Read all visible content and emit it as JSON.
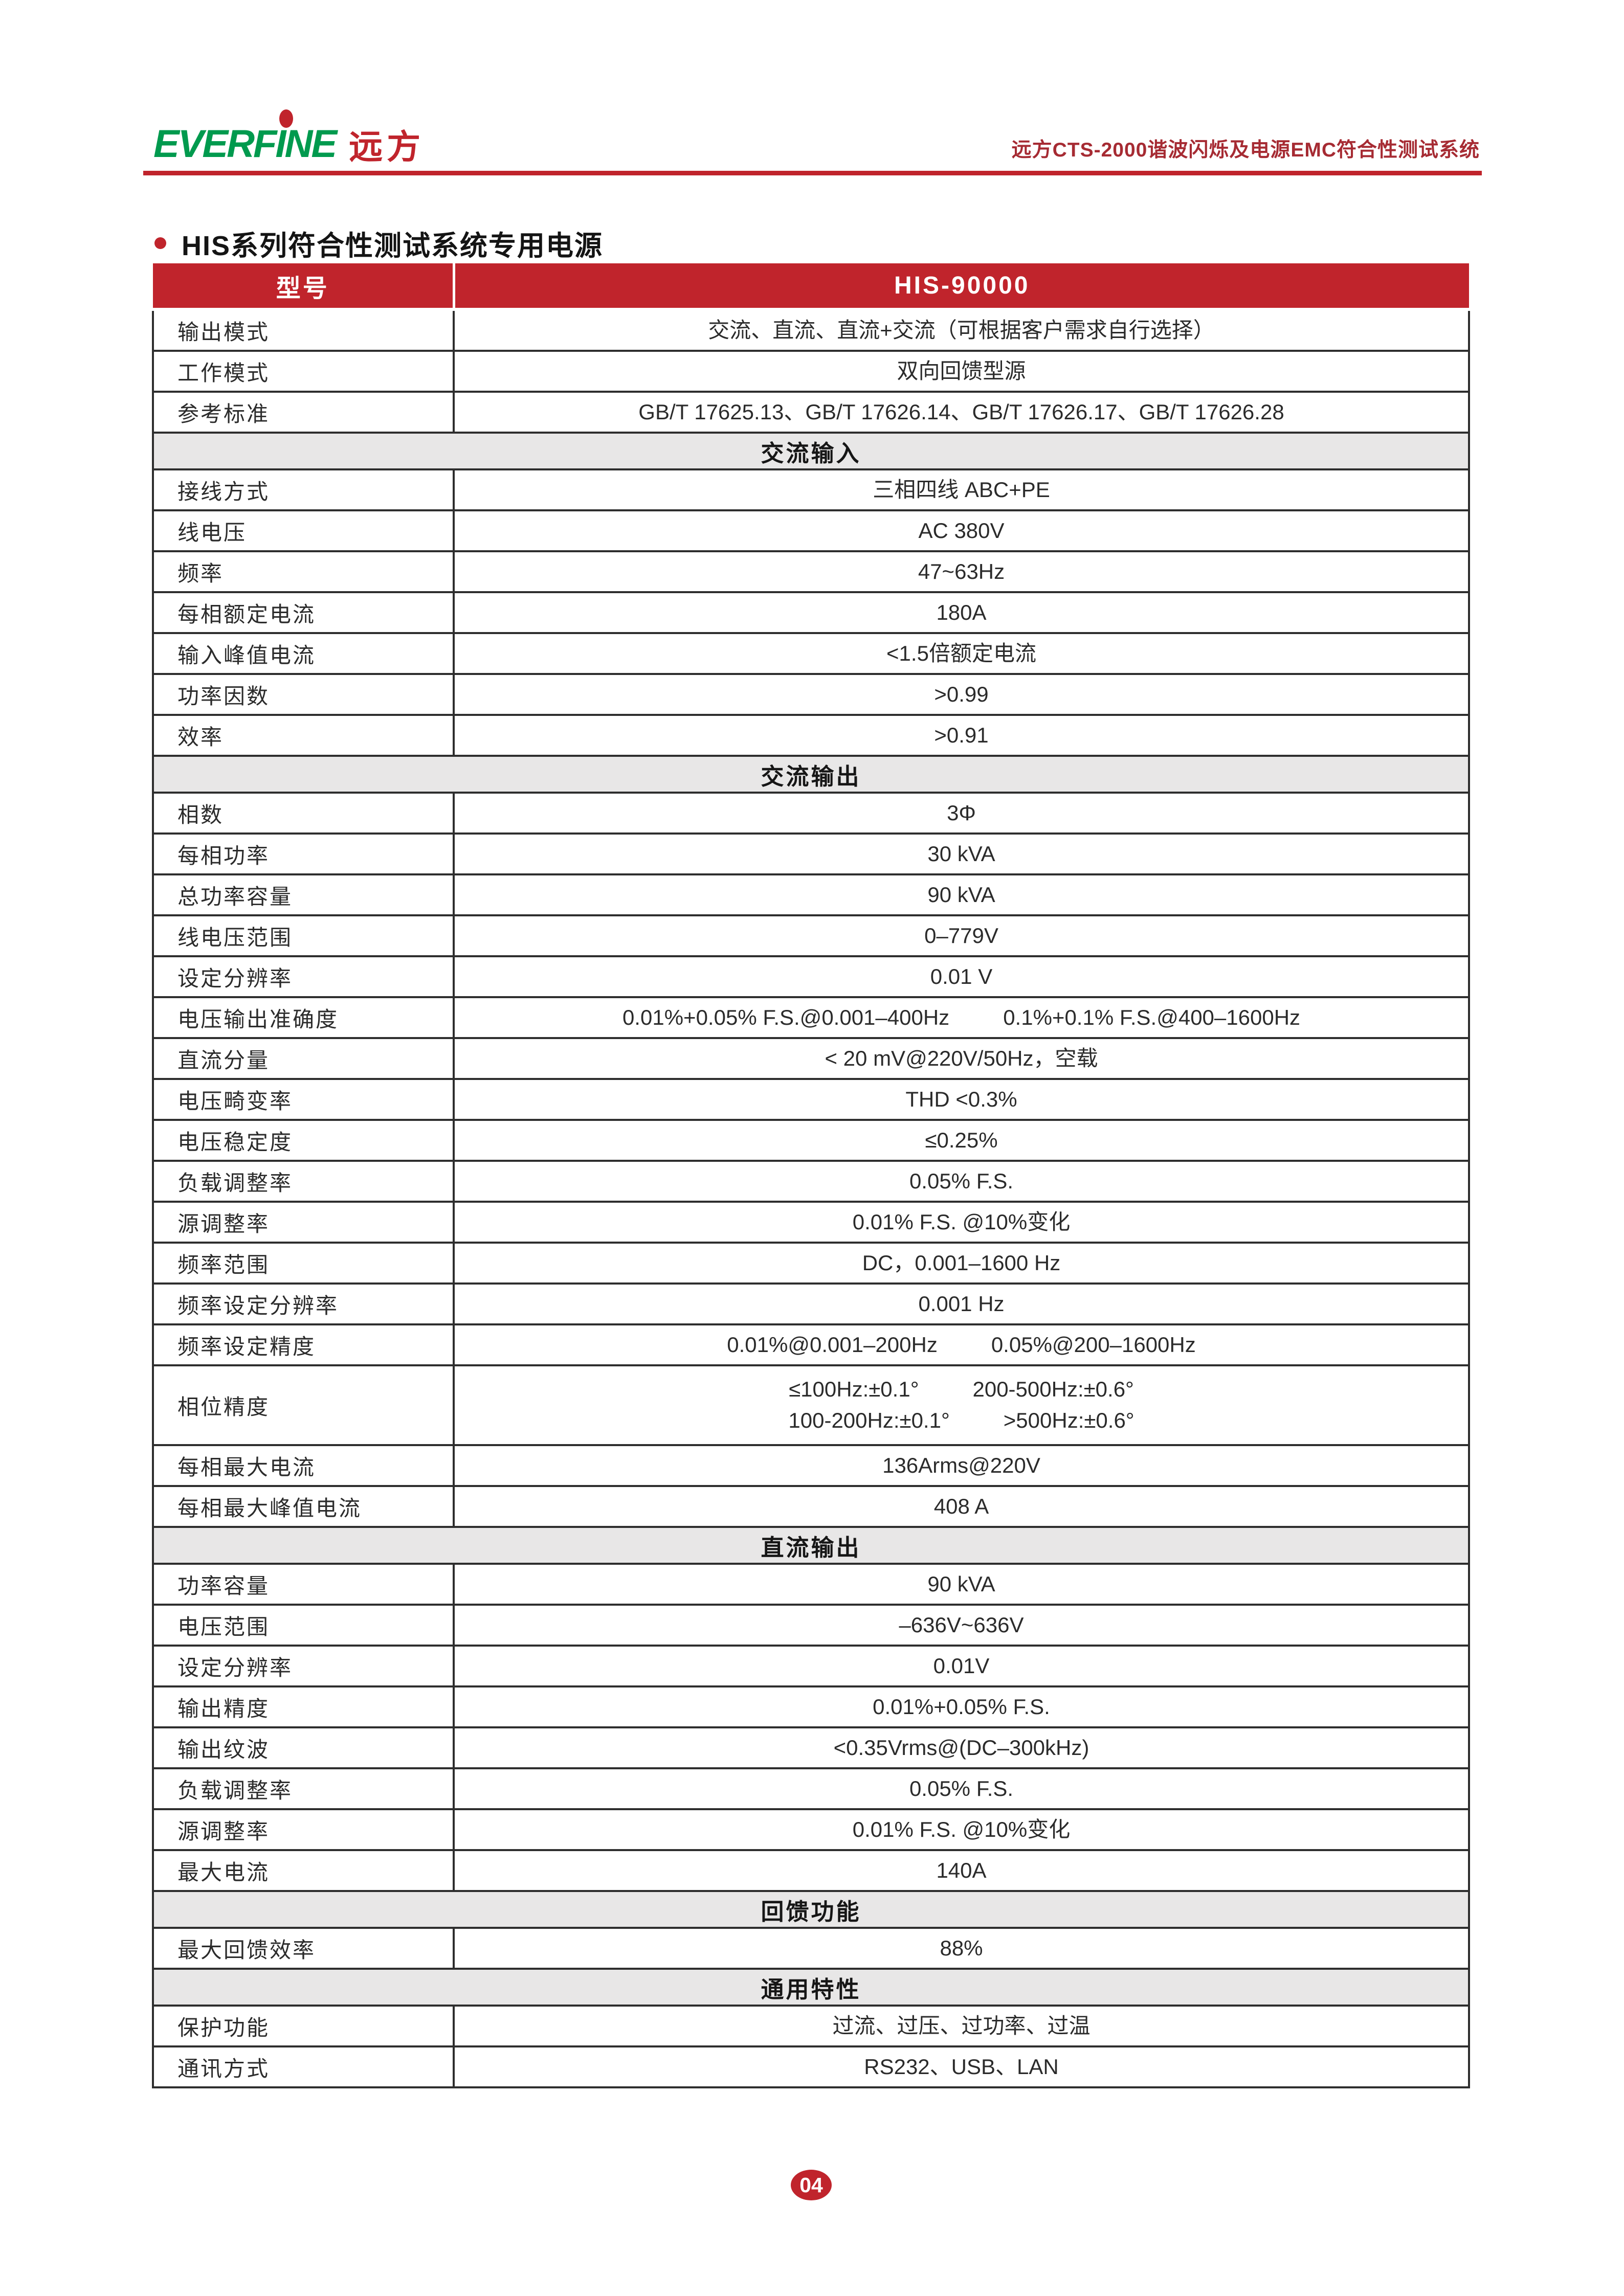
{
  "colors": {
    "accent": "#C0242C",
    "logo_green": "#009A4E",
    "section_bg": "#E8E7E7",
    "doc_title_red": "#A62B33"
  },
  "header": {
    "logo_text": "EVERFINE",
    "logo_cn": "远方",
    "doc_title": "远方CTS-2000谐波闪烁及电源EMC符合性测试系统"
  },
  "section_title": "HIS系列符合性测试系统专用电源",
  "table": {
    "header": {
      "col1": "型号",
      "col2": "HIS-90000"
    },
    "rows": [
      {
        "type": "data",
        "label": "输出模式",
        "lines": [
          [
            "交流、直流、直流+交流（可根据客户需求自行选择）"
          ]
        ]
      },
      {
        "type": "data",
        "label": "工作模式",
        "lines": [
          [
            "双向回馈型源"
          ]
        ]
      },
      {
        "type": "data",
        "label": "参考标准",
        "lines": [
          [
            "GB/T 17625.13、GB/T 17626.14、GB/T 17626.17、GB/T 17626.28"
          ]
        ]
      },
      {
        "type": "section",
        "label": "交流输入"
      },
      {
        "type": "data",
        "label": "接线方式",
        "lines": [
          [
            "三相四线 ABC+PE"
          ]
        ]
      },
      {
        "type": "data",
        "label": "线电压",
        "lines": [
          [
            "AC 380V"
          ]
        ]
      },
      {
        "type": "data",
        "label": "频率",
        "lines": [
          [
            "47~63Hz"
          ]
        ]
      },
      {
        "type": "data",
        "label": "每相额定电流",
        "lines": [
          [
            "180A"
          ]
        ]
      },
      {
        "type": "data",
        "label": "输入峰值电流",
        "lines": [
          [
            "<1.5倍额定电流"
          ]
        ]
      },
      {
        "type": "data",
        "label": "功率因数",
        "lines": [
          [
            ">0.99"
          ]
        ]
      },
      {
        "type": "data",
        "label": "效率",
        "lines": [
          [
            ">0.91"
          ]
        ]
      },
      {
        "type": "section",
        "label": "交流输出"
      },
      {
        "type": "data",
        "label": "相数",
        "lines": [
          [
            "3Φ"
          ]
        ]
      },
      {
        "type": "data",
        "label": "每相功率",
        "lines": [
          [
            "30 kVA"
          ]
        ]
      },
      {
        "type": "data",
        "label": "总功率容量",
        "lines": [
          [
            "90 kVA"
          ]
        ]
      },
      {
        "type": "data",
        "label": "线电压范围",
        "lines": [
          [
            "0–779V"
          ]
        ]
      },
      {
        "type": "data",
        "label": "设定分辨率",
        "lines": [
          [
            "0.01 V"
          ]
        ]
      },
      {
        "type": "data",
        "label": "电压输出准确度",
        "lines": [
          [
            "0.01%+0.05% F.S.@0.001–400Hz",
            "0.1%+0.1% F.S.@400–1600Hz"
          ]
        ]
      },
      {
        "type": "data",
        "label": "直流分量",
        "lines": [
          [
            "< 20 mV@220V/50Hz，空载"
          ]
        ]
      },
      {
        "type": "data",
        "label": "电压畸变率",
        "lines": [
          [
            "THD <0.3%"
          ]
        ]
      },
      {
        "type": "data",
        "label": "电压稳定度",
        "lines": [
          [
            "≤0.25%"
          ]
        ]
      },
      {
        "type": "data",
        "label": "负载调整率",
        "lines": [
          [
            "0.05% F.S."
          ]
        ]
      },
      {
        "type": "data",
        "label": "源调整率",
        "lines": [
          [
            "0.01% F.S. @10%变化"
          ]
        ]
      },
      {
        "type": "data",
        "label": "频率范围",
        "lines": [
          [
            "DC，0.001–1600 Hz"
          ]
        ]
      },
      {
        "type": "data",
        "label": "频率设定分辨率",
        "lines": [
          [
            "0.001 Hz"
          ]
        ]
      },
      {
        "type": "data",
        "label": "频率设定精度",
        "lines": [
          [
            "0.01%@0.001–200Hz",
            "0.05%@200–1600Hz"
          ]
        ]
      },
      {
        "type": "data",
        "label": "相位精度",
        "tall": true,
        "lines": [
          [
            "≤100Hz:±0.1°",
            "200-500Hz:±0.6°"
          ],
          [
            "100-200Hz:±0.1°",
            ">500Hz:±0.6°"
          ]
        ]
      },
      {
        "type": "data",
        "label": "每相最大电流",
        "lines": [
          [
            "136Arms@220V"
          ]
        ]
      },
      {
        "type": "data",
        "label": "每相最大峰值电流",
        "lines": [
          [
            "408 A"
          ]
        ]
      },
      {
        "type": "section",
        "label": "直流输出"
      },
      {
        "type": "data",
        "label": "功率容量",
        "lines": [
          [
            "90 kVA"
          ]
        ]
      },
      {
        "type": "data",
        "label": "电压范围",
        "lines": [
          [
            "–636V~636V"
          ]
        ]
      },
      {
        "type": "data",
        "label": "设定分辨率",
        "lines": [
          [
            "0.01V"
          ]
        ]
      },
      {
        "type": "data",
        "label": "输出精度",
        "lines": [
          [
            "0.01%+0.05% F.S."
          ]
        ]
      },
      {
        "type": "data",
        "label": "输出纹波",
        "lines": [
          [
            "<0.35Vrms@(DC–300kHz)"
          ]
        ]
      },
      {
        "type": "data",
        "label": "负载调整率",
        "lines": [
          [
            "0.05% F.S."
          ]
        ]
      },
      {
        "type": "data",
        "label": "源调整率",
        "lines": [
          [
            "0.01% F.S. @10%变化"
          ]
        ]
      },
      {
        "type": "data",
        "label": "最大电流",
        "lines": [
          [
            "140A"
          ]
        ]
      },
      {
        "type": "section",
        "label": "回馈功能"
      },
      {
        "type": "data",
        "label": "最大回馈效率",
        "lines": [
          [
            "88%"
          ]
        ]
      },
      {
        "type": "section",
        "label": "通用特性"
      },
      {
        "type": "data",
        "label": "保护功能",
        "lines": [
          [
            "过流、过压、过功率、过温"
          ]
        ]
      },
      {
        "type": "data",
        "label": "通讯方式",
        "lines": [
          [
            "RS232、USB、LAN"
          ]
        ]
      }
    ]
  },
  "footer": {
    "page_number": "04"
  }
}
